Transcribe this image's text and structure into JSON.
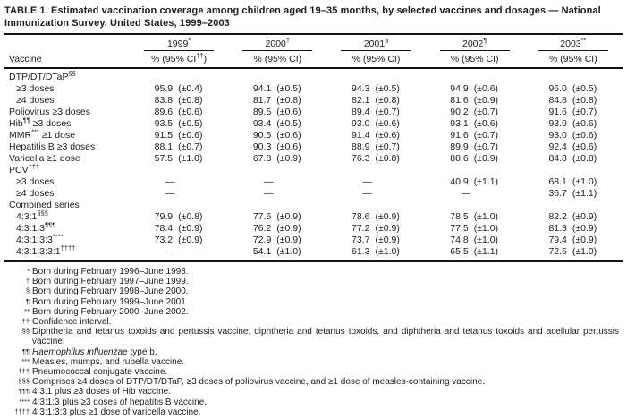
{
  "title": "TABLE 1. Estimated vaccination coverage among children aged 19–35 months, by selected vaccines and dosages — National Immunization Survey, United States, 1999–2003",
  "table": {
    "vaccine_col_label": "Vaccine",
    "years": [
      {
        "label": "1999",
        "sup": "*"
      },
      {
        "label": "2000",
        "sup": "†"
      },
      {
        "label": "2001",
        "sup": "§"
      },
      {
        "label": "2002",
        "sup": "¶"
      },
      {
        "label": "2003",
        "sup": "**"
      }
    ],
    "subheaders": [
      {
        "pre": "% (95% CI",
        "sup": "††",
        "post": ")"
      },
      {
        "pre": "% (95% CI)",
        "sup": "",
        "post": ""
      },
      {
        "pre": "% (95% CI)",
        "sup": "",
        "post": ""
      },
      {
        "pre": "% (95% CI)",
        "sup": "",
        "post": ""
      },
      {
        "pre": "% (95% CI)",
        "sup": "",
        "post": ""
      }
    ],
    "rows": [
      {
        "type": "section",
        "pre": "DTP/DT/DTaP",
        "sup": "§§",
        "post": ""
      },
      {
        "type": "data",
        "pre": "≥3 doses",
        "sup": "",
        "post": "",
        "cells": [
          {
            "v": "95.9",
            "ci": "(±0.4)"
          },
          {
            "v": "94.1",
            "ci": "(±0.5)"
          },
          {
            "v": "94.3",
            "ci": "(±0.5)"
          },
          {
            "v": "94.9",
            "ci": "(±0.6)"
          },
          {
            "v": "96.0",
            "ci": "(±0.5)"
          }
        ]
      },
      {
        "type": "data",
        "pre": "≥4 doses",
        "sup": "",
        "post": "",
        "cells": [
          {
            "v": "83.8",
            "ci": "(±0.8)"
          },
          {
            "v": "81.7",
            "ci": "(±0.8)"
          },
          {
            "v": "82.1",
            "ci": "(±0.8)"
          },
          {
            "v": "81.6",
            "ci": "(±0.9)"
          },
          {
            "v": "84.8",
            "ci": "(±0.8)"
          }
        ]
      },
      {
        "type": "data",
        "pre": "Poliovirus ≥3 doses",
        "sup": "",
        "post": "",
        "cells": [
          {
            "v": "89.6",
            "ci": "(±0.6)"
          },
          {
            "v": "89.5",
            "ci": "(±0.6)"
          },
          {
            "v": "89.4",
            "ci": "(±0.7)"
          },
          {
            "v": "90.2",
            "ci": "(±0.7)"
          },
          {
            "v": "91.6",
            "ci": "(±0.7)"
          }
        ]
      },
      {
        "type": "data",
        "pre": "Hib",
        "sup": "¶¶",
        "post": " ≥3 doses",
        "cells": [
          {
            "v": "93.5",
            "ci": "(±0.5)"
          },
          {
            "v": "93.4",
            "ci": "(±0.5)"
          },
          {
            "v": "93.0",
            "ci": "(±0.6)"
          },
          {
            "v": "93.1",
            "ci": "(±0.6)"
          },
          {
            "v": "93.9",
            "ci": "(±0.6)"
          }
        ]
      },
      {
        "type": "data",
        "pre": "MMR",
        "sup": "***",
        "post": " ≥1 dose",
        "cells": [
          {
            "v": "91.5",
            "ci": "(±0.6)"
          },
          {
            "v": "90.5",
            "ci": "(±0.6)"
          },
          {
            "v": "91.4",
            "ci": "(±0.6)"
          },
          {
            "v": "91.6",
            "ci": "(±0.7)"
          },
          {
            "v": "93.0",
            "ci": "(±0.6)"
          }
        ]
      },
      {
        "type": "data",
        "pre": "Hepatitis B ≥3 doses",
        "sup": "",
        "post": "",
        "cells": [
          {
            "v": "88.1",
            "ci": "(±0.7)"
          },
          {
            "v": "90.3",
            "ci": "(±0.6)"
          },
          {
            "v": "88.9",
            "ci": "(±0.7)"
          },
          {
            "v": "89.9",
            "ci": "(±0.7)"
          },
          {
            "v": "92.4",
            "ci": "(±0.6)"
          }
        ]
      },
      {
        "type": "data",
        "pre": "Varicella ≥1 dose",
        "sup": "",
        "post": "",
        "cells": [
          {
            "v": "57.5",
            "ci": "(±1.0)"
          },
          {
            "v": "67.8",
            "ci": "(±0.9)"
          },
          {
            "v": "76.3",
            "ci": "(±0.8)"
          },
          {
            "v": "80.6",
            "ci": "(±0.9)"
          },
          {
            "v": "84.8",
            "ci": "(±0.8)"
          }
        ]
      },
      {
        "type": "section",
        "pre": "PCV",
        "sup": "†††",
        "post": ""
      },
      {
        "type": "data",
        "pre": "≥3 doses",
        "sup": "",
        "post": "",
        "cells": [
          {
            "v": "—",
            "ci": ""
          },
          {
            "v": "—",
            "ci": ""
          },
          {
            "v": "—",
            "ci": ""
          },
          {
            "v": "40.9",
            "ci": "(±1.1)"
          },
          {
            "v": "68.1",
            "ci": "(±1.0)"
          }
        ]
      },
      {
        "type": "data",
        "pre": "≥4 doses",
        "sup": "",
        "post": "",
        "cells": [
          {
            "v": "—",
            "ci": ""
          },
          {
            "v": "—",
            "ci": ""
          },
          {
            "v": "—",
            "ci": ""
          },
          {
            "v": "—",
            "ci": ""
          },
          {
            "v": "36.7",
            "ci": "(±1.1)"
          }
        ]
      },
      {
        "type": "section",
        "pre": "Combined series",
        "sup": "",
        "post": ""
      },
      {
        "type": "data",
        "pre": "4:3:1",
        "sup": "§§§",
        "post": "",
        "cells": [
          {
            "v": "79.9",
            "ci": "(±0.8)"
          },
          {
            "v": "77.6",
            "ci": "(±0.9)"
          },
          {
            "v": "78.6",
            "ci": "(±0.9)"
          },
          {
            "v": "78.5",
            "ci": "(±1.0)"
          },
          {
            "v": "82.2",
            "ci": "(±0.9)"
          }
        ]
      },
      {
        "type": "data",
        "pre": "4:3:1:3",
        "sup": "¶¶¶",
        "post": "",
        "cells": [
          {
            "v": "78.4",
            "ci": "(±0.9)"
          },
          {
            "v": "76.2",
            "ci": "(±0.9)"
          },
          {
            "v": "77.2",
            "ci": "(±0.9)"
          },
          {
            "v": "77.5",
            "ci": "(±1.0)"
          },
          {
            "v": "81.3",
            "ci": "(±0.9)"
          }
        ]
      },
      {
        "type": "data",
        "pre": "4:3:1:3:3",
        "sup": "****",
        "post": "",
        "cells": [
          {
            "v": "73.2",
            "ci": "(±0.9)"
          },
          {
            "v": "72.9",
            "ci": "(±0.9)"
          },
          {
            "v": "73.7",
            "ci": "(±0.9)"
          },
          {
            "v": "74.8",
            "ci": "(±1.0)"
          },
          {
            "v": "79.4",
            "ci": "(±0.9)"
          }
        ]
      },
      {
        "type": "data",
        "pre": "4:3:1:3:3:1",
        "sup": "††††",
        "post": "",
        "cells": [
          {
            "v": "—",
            "ci": ""
          },
          {
            "v": "54.1",
            "ci": "(±1.0)"
          },
          {
            "v": "61.3",
            "ci": "(±1.0)"
          },
          {
            "v": "65.5",
            "ci": "(±1.1)"
          },
          {
            "v": "72.5",
            "ci": "(±1.0)"
          }
        ]
      }
    ]
  },
  "footnotes": [
    {
      "marker": "*",
      "italic": "",
      "text": "Born during February 1996–June 1998."
    },
    {
      "marker": "†",
      "italic": "",
      "text": "Born during February 1997–June 1999."
    },
    {
      "marker": "§",
      "italic": "",
      "text": "Born during February 1998–June 2000."
    },
    {
      "marker": "¶",
      "italic": "",
      "text": "Born during February 1999–June 2001."
    },
    {
      "marker": "**",
      "italic": "",
      "text": "Born during February 2000–June 2002."
    },
    {
      "marker": "††",
      "italic": "",
      "text": "Confidence interval."
    },
    {
      "marker": "§§",
      "italic": "",
      "text": "Diphtheria and tetanus toxoids and pertussis vaccine, diphtheria and tetanus toxoids, and diphtheria and tetanus toxoids and acellular pertussis vaccine."
    },
    {
      "marker": "¶¶",
      "italic": "Haemophilus influenzae",
      "text": " type b."
    },
    {
      "marker": "***",
      "italic": "",
      "text": "Measles, mumps, and rubella vaccine."
    },
    {
      "marker": "†††",
      "italic": "",
      "text": "Pneumococcal conjugate vaccine."
    },
    {
      "marker": "§§§",
      "italic": "",
      "text": "Comprises ≥4 doses of DTP/DT/DTaP, ≥3 doses of poliovirus vaccine, and ≥1 dose of measles-containing vaccine."
    },
    {
      "marker": "¶¶¶",
      "italic": "",
      "text": "4:3:1 plus ≥3 doses of Hib vaccine."
    },
    {
      "marker": "****",
      "italic": "",
      "text": "4:3:1:3 plus ≥3 doses of hepatitis B vaccine."
    },
    {
      "marker": "††††",
      "italic": "",
      "text": "4:3:1:3:3 plus ≥1 dose of varicella vaccine."
    }
  ]
}
